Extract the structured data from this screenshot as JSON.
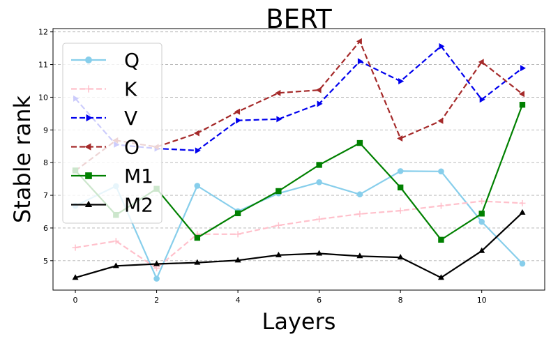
{
  "chart_data": {
    "type": "line",
    "title": "BERT",
    "xlabel": "Layers",
    "ylabel": "Stable rank",
    "xlim": [
      -0.55,
      11.55
    ],
    "ylim": [
      4.1,
      12.1
    ],
    "xticks": [
      0,
      2,
      4,
      6,
      8,
      10
    ],
    "yticks": [
      5,
      6,
      7,
      8,
      9,
      10,
      11,
      12
    ],
    "grid": "horizontal dashed",
    "legend_position": "upper left",
    "x": [
      0,
      1,
      2,
      3,
      4,
      5,
      6,
      7,
      8,
      9,
      10,
      11
    ],
    "series": [
      {
        "name": "Q",
        "color": "#87ceeb",
        "dash": "solid",
        "marker": "circle",
        "values": [
          6.68,
          7.28,
          4.45,
          7.29,
          6.51,
          7.06,
          7.4,
          7.03,
          7.74,
          7.73,
          6.19,
          4.91
        ]
      },
      {
        "name": "K",
        "color": "#ffc0cb",
        "dash": "dashed",
        "marker": "plus",
        "values": [
          5.4,
          5.6,
          4.77,
          5.81,
          5.81,
          6.08,
          6.27,
          6.43,
          6.53,
          6.68,
          6.82,
          6.76
        ]
      },
      {
        "name": "V",
        "color": "#0000ee",
        "dash": "dashed",
        "marker": "triangle-right",
        "values": [
          9.96,
          8.55,
          8.43,
          8.37,
          9.29,
          9.33,
          9.8,
          11.1,
          10.49,
          11.56,
          9.93,
          10.89
        ]
      },
      {
        "name": "O",
        "color": "#a52a2a",
        "dash": "dashed",
        "marker": "triangle-left",
        "values": [
          7.75,
          8.68,
          8.48,
          8.9,
          9.56,
          10.13,
          10.22,
          11.71,
          8.74,
          9.28,
          11.08,
          10.1
        ]
      },
      {
        "name": "M1",
        "color": "#008000",
        "dash": "solid",
        "marker": "square",
        "values": [
          7.76,
          6.4,
          7.2,
          5.7,
          6.45,
          7.13,
          7.93,
          8.6,
          7.24,
          5.64,
          6.44,
          9.77
        ]
      },
      {
        "name": "M2",
        "color": "#000000",
        "dash": "solid",
        "marker": "triangle-up",
        "values": [
          4.48,
          4.84,
          4.9,
          4.94,
          5.01,
          5.17,
          5.22,
          5.14,
          5.1,
          4.48,
          5.3,
          6.47
        ]
      }
    ]
  }
}
